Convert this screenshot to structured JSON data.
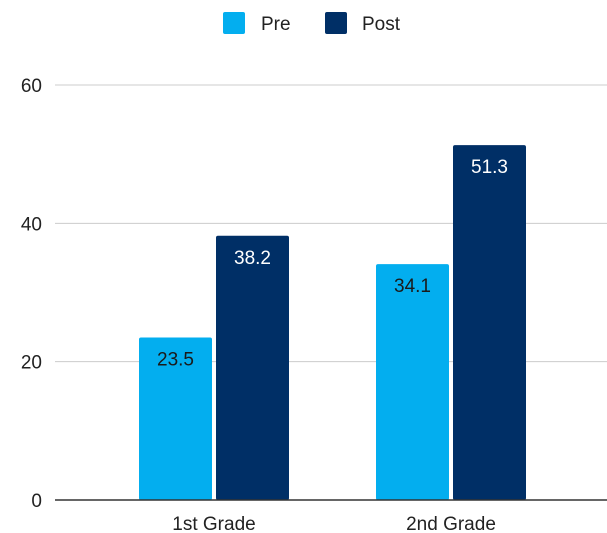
{
  "chart_data": {
    "type": "bar",
    "title": "",
    "xlabel": "",
    "ylabel": "",
    "categories": [
      "1st Grade",
      "2nd Grade"
    ],
    "series": [
      {
        "name": "Pre",
        "values": [
          23.5,
          34.1
        ],
        "color": "#03AEEF",
        "label_color": "#1a1a1a"
      },
      {
        "name": "Post",
        "values": [
          38.2,
          51.3
        ],
        "color": "#002F66",
        "label_color": "#ffffff"
      }
    ],
    "value_labels": {
      "pre_1st": "23.5",
      "post_1st": "38.2",
      "pre_2nd": "34.1",
      "post_2nd": "51.3"
    },
    "ylim": [
      0,
      60
    ],
    "yticks": [
      0,
      20,
      40,
      60
    ],
    "ytick_labels": [
      "0",
      "20",
      "40",
      "60"
    ],
    "grid": true,
    "legend_position": "top-center",
    "gridline_color": "#cccccc",
    "axis_color": "#333333"
  }
}
